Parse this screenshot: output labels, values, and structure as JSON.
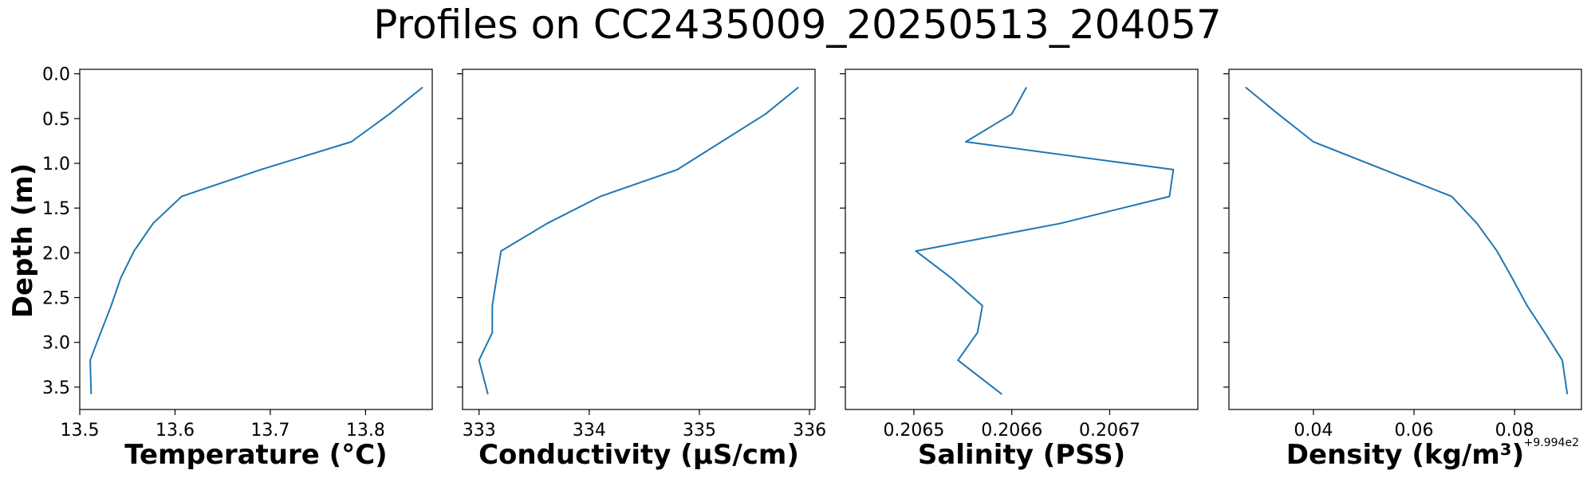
{
  "title": "Profiles on CC2435009_20250513_204057",
  "line_color": "#1f77b4",
  "chart_data": [
    {
      "type": "line",
      "xlabel": "Temperature (°C)",
      "ylabel": "Depth (m)",
      "xlim": [
        13.5,
        13.87
      ],
      "ylim": [
        3.75,
        -0.05
      ],
      "y_inverted": true,
      "xticks": [
        "13.5",
        "13.6",
        "13.7",
        "13.8"
      ],
      "yticks": [
        "0.0",
        "0.5",
        "1.0",
        "1.5",
        "2.0",
        "2.5",
        "3.0",
        "3.5"
      ],
      "series": [
        {
          "x": [
            13.86,
            13.825,
            13.785,
            13.69,
            13.607,
            13.577,
            13.557,
            13.543,
            13.533,
            13.522,
            13.511,
            13.512
          ],
          "y": [
            0.15,
            0.45,
            0.76,
            1.07,
            1.37,
            1.67,
            1.98,
            2.28,
            2.59,
            2.89,
            3.2,
            3.58
          ]
        }
      ]
    },
    {
      "type": "line",
      "xlabel": "Conductivity (µS/cm)",
      "xlim": [
        332.85,
        336.05
      ],
      "ylim": [
        3.75,
        -0.05
      ],
      "y_inverted": true,
      "xticks": [
        "333",
        "334",
        "335",
        "336"
      ],
      "series": [
        {
          "x": [
            335.9,
            335.6,
            335.2,
            334.8,
            334.1,
            333.62,
            333.2,
            333.16,
            333.12,
            333.12,
            333.0,
            333.08
          ],
          "y": [
            0.15,
            0.45,
            0.76,
            1.07,
            1.37,
            1.67,
            1.98,
            2.28,
            2.59,
            2.89,
            3.2,
            3.58
          ]
        }
      ]
    },
    {
      "type": "line",
      "xlabel": "Salinity (PSS)",
      "xlim": [
        0.20643,
        0.20679
      ],
      "ylim": [
        3.75,
        -0.05
      ],
      "y_inverted": true,
      "xticks": [
        "0.2065",
        "0.2066",
        "0.2067"
      ],
      "series": [
        {
          "x": [
            0.206615,
            0.2066,
            0.206553,
            0.206765,
            0.206761,
            0.20665,
            0.206502,
            0.206538,
            0.20657,
            0.206565,
            0.206545,
            0.20659
          ],
          "y": [
            0.15,
            0.45,
            0.76,
            1.07,
            1.37,
            1.67,
            1.98,
            2.28,
            2.59,
            2.89,
            3.2,
            3.58
          ]
        }
      ]
    },
    {
      "type": "line",
      "xlabel": "Density (kg/m³)",
      "offset_label": "+9.994e2",
      "xlim": [
        0.0232,
        0.0933
      ],
      "ylim": [
        3.75,
        -0.05
      ],
      "y_inverted": true,
      "xticks": [
        "0.04",
        "0.06",
        "0.08"
      ],
      "series": [
        {
          "x": [
            0.0265,
            0.033,
            0.04,
            0.054,
            0.0675,
            0.0725,
            0.0765,
            0.0795,
            0.0825,
            0.086,
            0.0895,
            0.0905
          ],
          "y": [
            0.15,
            0.45,
            0.76,
            1.07,
            1.37,
            1.67,
            1.98,
            2.28,
            2.59,
            2.89,
            3.2,
            3.58
          ]
        }
      ]
    }
  ]
}
